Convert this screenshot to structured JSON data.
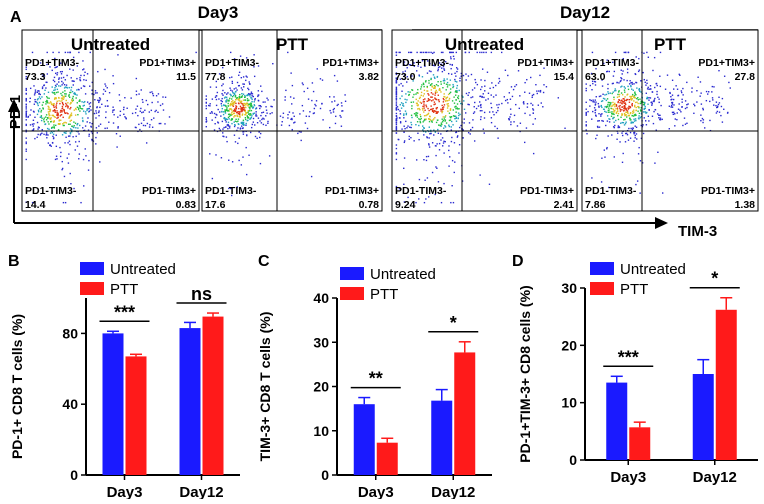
{
  "colors": {
    "untreated": "#1a1aff",
    "ptt": "#ff1a1a",
    "axis": "#000000",
    "dot": "#2a2ad0"
  },
  "panel_a": {
    "letter": "A",
    "day3_label": "Day3",
    "day12_label": "Day12",
    "y_axis_label": "PD-1",
    "x_axis_label": "TIM-3",
    "plots": [
      {
        "condition": "Untreated",
        "q_tl_label": "PD1+TIM3-",
        "q_tl_value": "73.3",
        "q_tr_label": "PD1+TIM3+",
        "q_tr_value": "11.5",
        "q_bl_label": "PD1-TIM3-",
        "q_bl_value": "14.4",
        "q_br_label": "PD1-TIM3+",
        "q_br_value": "0.83"
      },
      {
        "condition": "PTT",
        "q_tl_label": "PD1+TIM3-",
        "q_tl_value": "77.8",
        "q_tr_label": "PD1+TIM3+",
        "q_tr_value": "3.82",
        "q_bl_label": "PD1-TIM3-",
        "q_bl_value": "17.6",
        "q_br_label": "PD1-TIM3+",
        "q_br_value": "0.78"
      },
      {
        "condition": "Untreated",
        "q_tl_label": "PD1+TIM3-",
        "q_tl_value": "73.0",
        "q_tr_label": "PD1+TIM3+",
        "q_tr_value": "15.4",
        "q_bl_label": "PD1-TIM3-",
        "q_bl_value": "9.24",
        "q_br_label": "PD1-TIM3+",
        "q_br_value": "2.41"
      },
      {
        "condition": "PTT",
        "q_tl_label": "PD1+TIM3-",
        "q_tl_value": "63.0",
        "q_tr_label": "PD1+TIM3+",
        "q_tr_value": "27.8",
        "q_bl_label": "PD1-TIM3-",
        "q_bl_value": "7.86",
        "q_br_label": "PD1-TIM3+",
        "q_br_value": "1.38"
      }
    ]
  },
  "chart_data": [
    {
      "type": "bar",
      "panel": "B",
      "ylabel": "PD-1+ CD8 T cells (%)",
      "categories": [
        "Day3",
        "Day12"
      ],
      "series": [
        {
          "name": "Untreated",
          "values": [
            80,
            83
          ],
          "errors": [
            1.2,
            3.2
          ]
        },
        {
          "name": "PTT",
          "values": [
            67,
            89.5
          ],
          "errors": [
            1.2,
            2.0
          ]
        }
      ],
      "ylim": [
        0,
        100
      ],
      "yticks": [
        0,
        40,
        80
      ],
      "significance": [
        "***",
        "ns"
      ]
    },
    {
      "type": "bar",
      "panel": "C",
      "ylabel": "TIM-3+ CD8 T cells (%)",
      "categories": [
        "Day3",
        "Day12"
      ],
      "series": [
        {
          "name": "Untreated",
          "values": [
            16,
            16.8
          ],
          "errors": [
            1.5,
            2.5
          ]
        },
        {
          "name": "PTT",
          "values": [
            7.3,
            27.7
          ],
          "errors": [
            1.0,
            2.4
          ]
        }
      ],
      "ylim": [
        0,
        40
      ],
      "yticks": [
        0,
        10,
        20,
        30,
        40
      ],
      "significance": [
        "**",
        "*"
      ]
    },
    {
      "type": "bar",
      "panel": "D",
      "ylabel": "PD-1+TIM-3+ CD8 cells (%)",
      "categories": [
        "Day3",
        "Day12"
      ],
      "series": [
        {
          "name": "Untreated",
          "values": [
            13.5,
            15
          ],
          "errors": [
            1.1,
            2.5
          ]
        },
        {
          "name": "PTT",
          "values": [
            5.7,
            26.2
          ],
          "errors": [
            0.9,
            2.1
          ]
        }
      ],
      "ylim": [
        0,
        30
      ],
      "yticks": [
        0,
        10,
        20,
        30
      ],
      "significance": [
        "***",
        "*"
      ]
    }
  ]
}
